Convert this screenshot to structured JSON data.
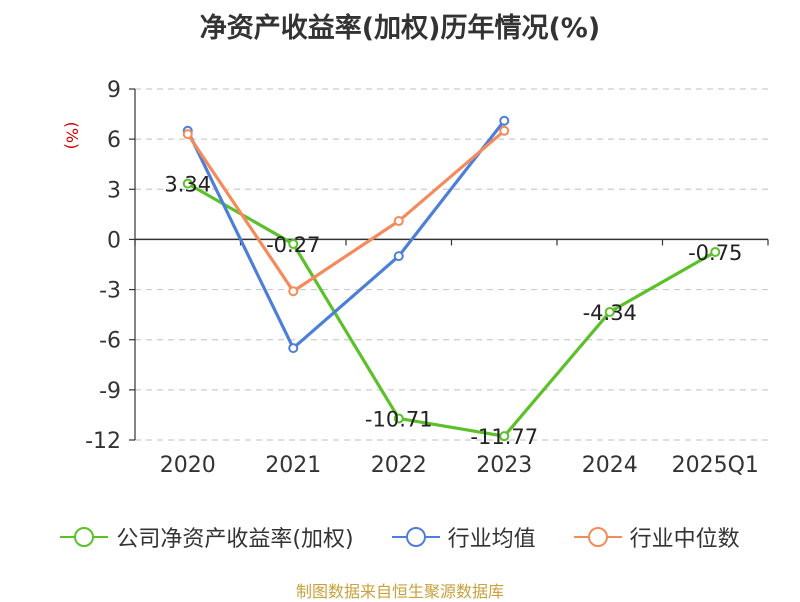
{
  "chart_data": {
    "type": "line",
    "title": "净资产收益率(加权)历年情况(%)",
    "ylabel": "(%)",
    "xlabel": "",
    "categories": [
      "2020",
      "2021",
      "2022",
      "2023",
      "2024",
      "2025Q1"
    ],
    "ylim": [
      -12,
      9
    ],
    "yticks": [
      9,
      6,
      3,
      0,
      -3,
      -6,
      -9,
      -12
    ],
    "grid": true,
    "legend_position": "bottom",
    "series": [
      {
        "name": "公司净资产收益率(加权)",
        "color": "#5cc02a",
        "values": [
          3.34,
          -0.27,
          -10.71,
          -11.77,
          -4.34,
          -0.75
        ],
        "data_labels": [
          "3.34",
          "-0.27",
          "-10.71",
          "-11.77",
          "-4.34",
          "-0.75"
        ]
      },
      {
        "name": "行业均值",
        "color": "#4e7fd8",
        "values": [
          6.5,
          -6.5,
          -1.0,
          7.1,
          null,
          null
        ]
      },
      {
        "name": "行业中位数",
        "color": "#f48b5c",
        "values": [
          6.3,
          -3.1,
          1.1,
          6.5,
          null,
          null
        ]
      }
    ]
  },
  "source": "制图数据来自恒生聚源数据库"
}
